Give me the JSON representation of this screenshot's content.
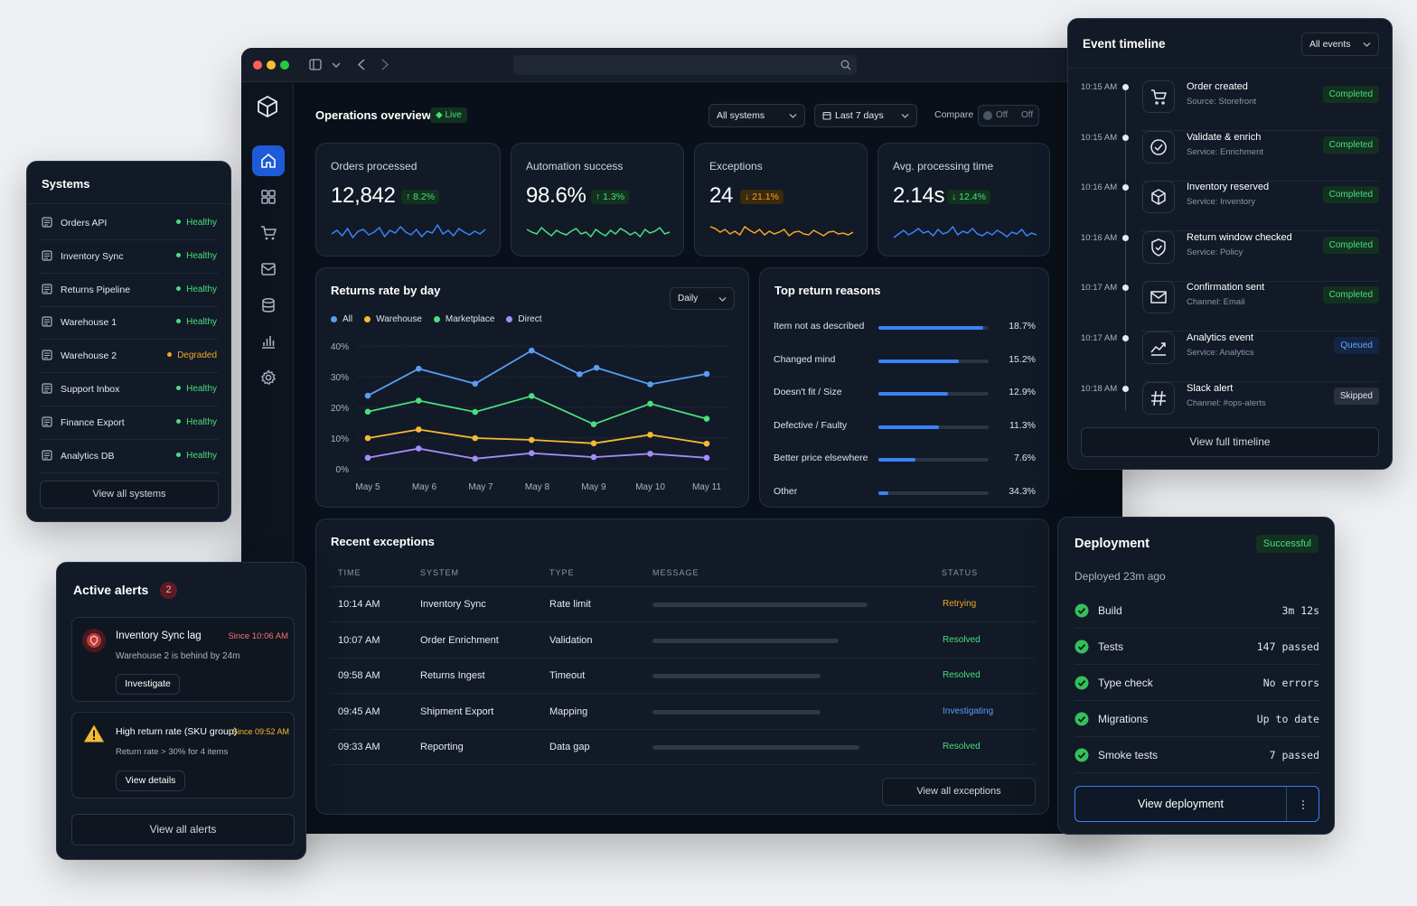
{
  "overview": {
    "title": "Operations overview",
    "live": "Live",
    "systems_filter": "All systems",
    "range_filter": "Last 7 days",
    "compare_label": "Compare",
    "compare_toggle": "Off",
    "compare_off": "Off"
  },
  "kpis": [
    {
      "label": "Orders processed",
      "value": "12,842",
      "delta": "↑ 8.2%",
      "trend": "up",
      "color": "#3b82f6"
    },
    {
      "label": "Automation success",
      "value": "98.6%",
      "delta": "↑ 1.3%",
      "trend": "up",
      "color": "#4ade80"
    },
    {
      "label": "Exceptions",
      "value": "24",
      "delta": "↓ 21.1%",
      "trend": "down",
      "color": "#f5a524"
    },
    {
      "label": "Avg. processing time",
      "value": "2.14s",
      "delta": "↓ 12.4%",
      "trend": "down",
      "color": "#3b82f6"
    }
  ],
  "returns_chart": {
    "title": "Returns rate by day",
    "granularity": "Daily"
  },
  "chart_data": {
    "type": "line",
    "x": [
      "May 5",
      "May 6",
      "May 7",
      "May 8",
      "May 9",
      "May 10",
      "May 11"
    ],
    "y_ticks": [
      "0%",
      "10%",
      "20%",
      "30%",
      "40%"
    ],
    "ylim": [
      0,
      40
    ],
    "legend": "top-left",
    "grid": true,
    "series": [
      {
        "name": "All",
        "color": "#5b9cf6",
        "points": [
          [
            0,
            23.8
          ],
          [
            0.9,
            32.6
          ],
          [
            1.9,
            27.7
          ],
          [
            2.9,
            38.5
          ],
          [
            3.75,
            30.8
          ],
          [
            4.05,
            32.9
          ],
          [
            5,
            27.5
          ],
          [
            6,
            30.9
          ]
        ]
      },
      {
        "name": "Warehouse",
        "color": "#f5b935",
        "points": [
          [
            0,
            10
          ],
          [
            0.9,
            12.8
          ],
          [
            1.9,
            10
          ],
          [
            2.9,
            9.4
          ],
          [
            4,
            8.3
          ],
          [
            5,
            11.1
          ],
          [
            6,
            8.2
          ]
        ]
      },
      {
        "name": "Marketplace",
        "color": "#4ade80",
        "points": [
          [
            0,
            18.6
          ],
          [
            0.9,
            22.2
          ],
          [
            1.9,
            18.5
          ],
          [
            2.9,
            23.7
          ],
          [
            4,
            14.5
          ],
          [
            5,
            21.2
          ],
          [
            6,
            16.3
          ]
        ]
      },
      {
        "name": "Direct",
        "color": "#a78bfa",
        "points": [
          [
            0,
            3.6
          ],
          [
            0.9,
            6.6
          ],
          [
            1.9,
            3.3
          ],
          [
            2.9,
            5.1
          ],
          [
            4,
            3.8
          ],
          [
            5,
            4.9
          ],
          [
            6,
            3.6
          ]
        ]
      }
    ]
  },
  "reasons": {
    "title": "Top return reasons",
    "items": [
      {
        "label": "Item not as described",
        "value": "18.7%",
        "fill": 0.95
      },
      {
        "label": "Changed mind",
        "value": "15.2%",
        "fill": 0.73
      },
      {
        "label": "Doesn't fit / Size",
        "value": "12.9%",
        "fill": 0.63
      },
      {
        "label": "Defective / Faulty",
        "value": "11.3%",
        "fill": 0.55
      },
      {
        "label": "Better price elsewhere",
        "value": "7.6%",
        "fill": 0.34
      },
      {
        "label": "Other",
        "value": "34.3%",
        "fill": 0.09
      }
    ]
  },
  "exceptions": {
    "title": "Recent exceptions",
    "headers": [
      "TIME",
      "SYSTEM",
      "TYPE",
      "MESSAGE",
      "STATUS"
    ],
    "rows": [
      {
        "time": "10:14 AM",
        "system": "Inventory Sync",
        "type": "Rate limit",
        "message_len": 0.82,
        "status": "Retrying",
        "status_color": "#f5a524"
      },
      {
        "time": "10:07 AM",
        "system": "Order Enrichment",
        "type": "Validation",
        "message_len": 0.71,
        "status": "Resolved",
        "status_color": "#4ade80"
      },
      {
        "time": "09:58 AM",
        "system": "Returns Ingest",
        "type": "Timeout",
        "message_len": 0.64,
        "status": "Resolved",
        "status_color": "#4ade80"
      },
      {
        "time": "09:45 AM",
        "system": "Shipment Export",
        "type": "Mapping",
        "message_len": 0.64,
        "status": "Investigating",
        "status_color": "#5b9cf6"
      },
      {
        "time": "09:33 AM",
        "system": "Reporting",
        "type": "Data gap",
        "message_len": 0.79,
        "status": "Resolved",
        "status_color": "#4ade80"
      }
    ],
    "view_all": "View all exceptions"
  },
  "systems": {
    "title": "Systems",
    "items": [
      {
        "name": "Orders API",
        "status": "Healthy",
        "color": "#4ade80"
      },
      {
        "name": "Inventory Sync",
        "status": "Healthy",
        "color": "#4ade80"
      },
      {
        "name": "Returns Pipeline",
        "status": "Healthy",
        "color": "#4ade80"
      },
      {
        "name": "Warehouse 1",
        "status": "Healthy",
        "color": "#4ade80"
      },
      {
        "name": "Warehouse 2",
        "status": "Degraded",
        "color": "#f5a524"
      },
      {
        "name": "Support Inbox",
        "status": "Healthy",
        "color": "#4ade80"
      },
      {
        "name": "Finance Export",
        "status": "Healthy",
        "color": "#4ade80"
      },
      {
        "name": "Analytics DB",
        "status": "Healthy",
        "color": "#4ade80"
      }
    ],
    "view_all": "View all systems"
  },
  "alerts": {
    "title": "Active alerts",
    "count": "2",
    "items": [
      {
        "title": "Inventory Sync lag",
        "since": "Since 10:06 AM",
        "desc": "Warehouse 2 is behind by 24m",
        "action": "Investigate"
      },
      {
        "title": "High return rate (SKU group)",
        "since": "Since 09:52 AM",
        "desc": "Return rate > 30% for 4 items",
        "action": "View details"
      }
    ],
    "view_all": "View all alerts"
  },
  "timeline": {
    "title": "Event timeline",
    "filter": "All events",
    "events": [
      {
        "time": "10:15 AM",
        "title": "Order created",
        "sub": "Source: Storefront",
        "status": "Completed",
        "icon": "cart-icon"
      },
      {
        "time": "10:15 AM",
        "title": "Validate & enrich",
        "sub": "Service: Enrichment",
        "status": "Completed",
        "icon": "check-circle-icon"
      },
      {
        "time": "10:16 AM",
        "title": "Inventory reserved",
        "sub": "Service: Inventory",
        "status": "Completed",
        "icon": "box-icon"
      },
      {
        "time": "10:16 AM",
        "title": "Return window checked",
        "sub": "Service: Policy",
        "status": "Completed",
        "icon": "shield-check-icon"
      },
      {
        "time": "10:17 AM",
        "title": "Confirmation sent",
        "sub": "Channel: Email",
        "status": "Completed",
        "icon": "mail-icon"
      },
      {
        "time": "10:17 AM",
        "title": "Analytics event",
        "sub": "Service: Analytics",
        "status": "Queued",
        "icon": "trend-icon"
      },
      {
        "time": "10:18 AM",
        "title": "Slack alert",
        "sub": "Channel: #ops-alerts",
        "status": "Skipped",
        "icon": "hash-icon"
      }
    ],
    "view_all": "View full timeline"
  },
  "deployment": {
    "title": "Deployment",
    "status": "Successful",
    "when": "Deployed 23m ago",
    "steps": [
      {
        "label": "Build",
        "value": "3m 12s"
      },
      {
        "label": "Tests",
        "value": "147 passed"
      },
      {
        "label": "Type check",
        "value": "No errors"
      },
      {
        "label": "Migrations",
        "value": "Up to date"
      },
      {
        "label": "Smoke tests",
        "value": "7 passed"
      }
    ],
    "action": "View deployment"
  }
}
